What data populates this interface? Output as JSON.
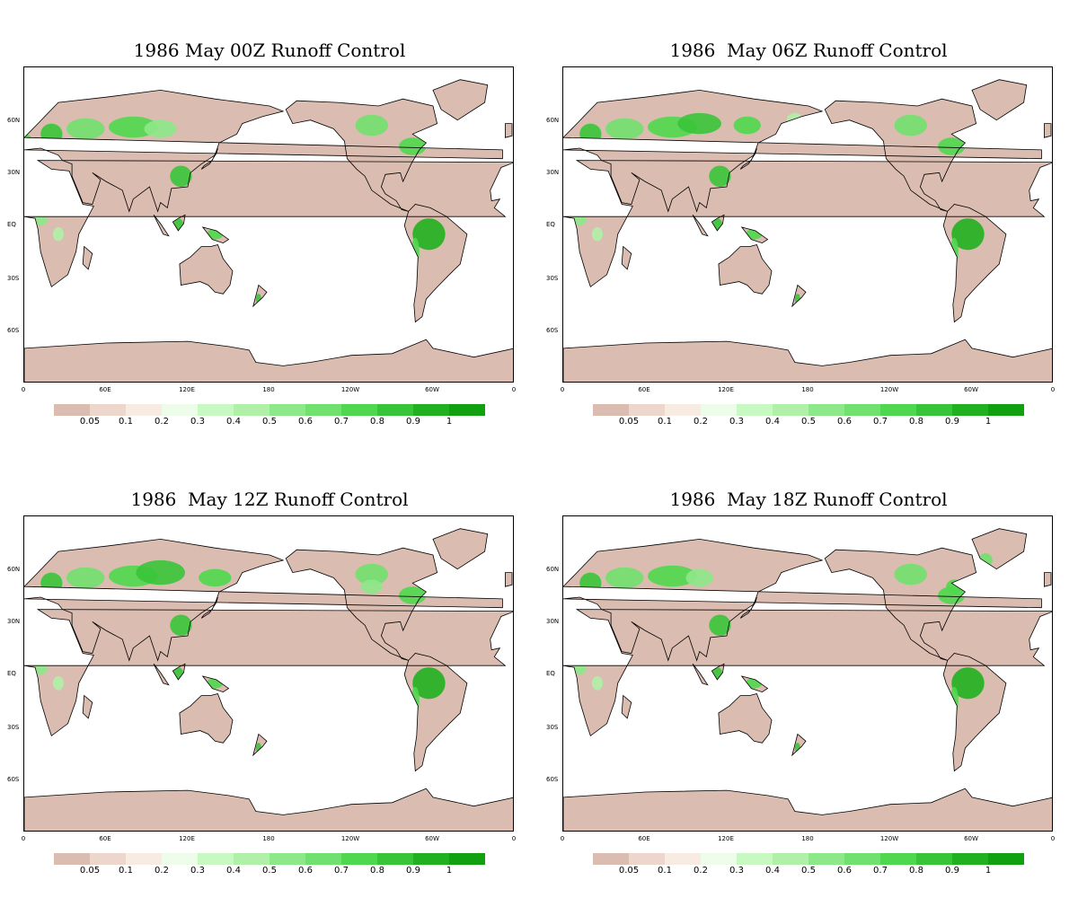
{
  "panels": [
    {
      "title": "1986 May 00Z Runoff Control"
    },
    {
      "title": "1986  May 06Z Runoff Control"
    },
    {
      "title": "1986  May 12Z Runoff Control"
    },
    {
      "title": "1986  May 18Z Runoff Control"
    }
  ],
  "lat_labels": [
    "60N",
    "30N",
    "EQ",
    "30S",
    "60S"
  ],
  "lon_labels": [
    "0",
    "60E",
    "120E",
    "180",
    "120W",
    "60W",
    "0"
  ],
  "colorbar": {
    "colors": [
      "#dbbcb0",
      "#edd6cc",
      "#f7ebe2",
      "#edfdea",
      "#c9f9c3",
      "#b0f0a8",
      "#8de88a",
      "#70e06e",
      "#4fd84f",
      "#38c438",
      "#20b020",
      "#10a010"
    ],
    "labels": [
      "0.05",
      "0.1",
      "0.2",
      "0.3",
      "0.4",
      "0.5",
      "0.6",
      "0.7",
      "0.8",
      "0.9",
      "1"
    ]
  },
  "colors": {
    "land_dry": "#dbbcb0",
    "ocean": "#ffffff",
    "coast": "#000000"
  }
}
